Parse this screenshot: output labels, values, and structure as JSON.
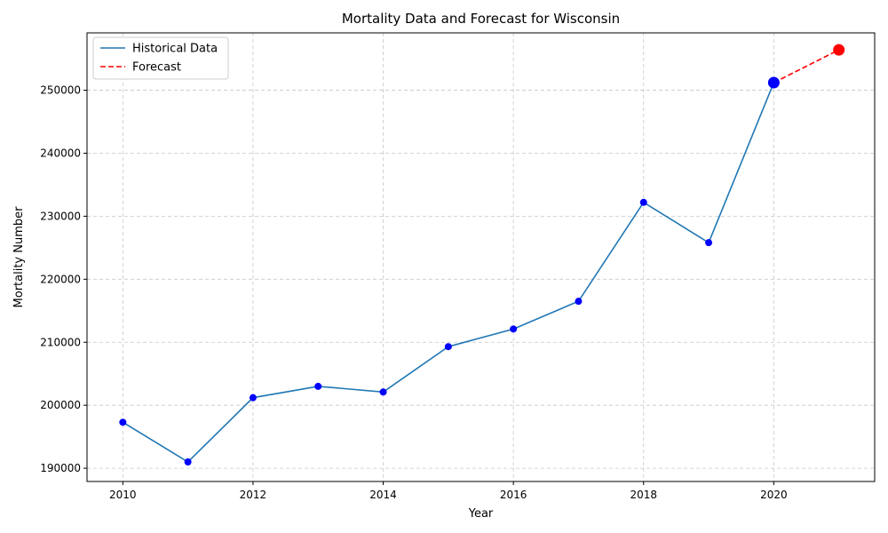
{
  "chart_data": {
    "type": "line",
    "title": "Mortality Data and Forecast for Wisconsin",
    "xlabel": "Year",
    "ylabel": "Mortality Number",
    "xlim": [
      2009.45,
      2021.55
    ],
    "ylim": [
      187900,
      259100
    ],
    "x_ticks": [
      2010,
      2012,
      2014,
      2016,
      2018,
      2020
    ],
    "y_ticks": [
      190000,
      200000,
      210000,
      220000,
      230000,
      240000,
      250000
    ],
    "grid": true,
    "legend_position": "upper-left",
    "series": [
      {
        "name": "Historical Data",
        "style": "solid",
        "color": "#1f77b4",
        "marker_color": "#0000ff",
        "x": [
          2010,
          2011,
          2012,
          2013,
          2014,
          2015,
          2016,
          2017,
          2018,
          2019,
          2020
        ],
        "y": [
          197300,
          191000,
          201200,
          203000,
          202100,
          209300,
          212100,
          216500,
          232200,
          225800,
          251200
        ]
      },
      {
        "name": "Forecast",
        "style": "dashed",
        "color": "#ff0000",
        "marker_color": "#ff0000",
        "x": [
          2020,
          2021
        ],
        "y": [
          251200,
          256400
        ]
      }
    ],
    "highlight_points": [
      {
        "x": 2020,
        "y": 251200,
        "color": "#0000ff"
      },
      {
        "x": 2021,
        "y": 256400,
        "color": "#ff0000"
      }
    ]
  }
}
